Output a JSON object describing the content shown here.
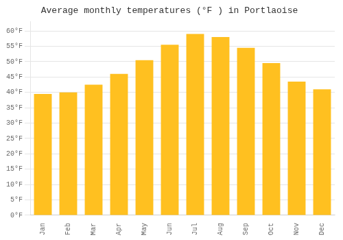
{
  "chart_data": {
    "type": "bar",
    "title": "Average monthly temperatures (°F ) in Portlaoise",
    "categories": [
      "Jan",
      "Feb",
      "Mar",
      "Apr",
      "May",
      "Jun",
      "Jul",
      "Aug",
      "Sep",
      "Oct",
      "Nov",
      "Dec"
    ],
    "values": [
      39.5,
      40.0,
      42.5,
      46.0,
      50.5,
      55.5,
      59.0,
      58.0,
      54.5,
      49.5,
      43.5,
      41.0
    ],
    "color": "#FFC020",
    "ylim": [
      0,
      63
    ],
    "yticks": [
      {
        "value": 0,
        "label": "0°F"
      },
      {
        "value": 5,
        "label": "5°F"
      },
      {
        "value": 10,
        "label": "10°F"
      },
      {
        "value": 15,
        "label": "15°F"
      },
      {
        "value": 20,
        "label": "20°F"
      },
      {
        "value": 25,
        "label": "25°F"
      },
      {
        "value": 30,
        "label": "30°F"
      },
      {
        "value": 35,
        "label": "35°F"
      },
      {
        "value": 40,
        "label": "40°F"
      },
      {
        "value": 45,
        "label": "45°F"
      },
      {
        "value": 50,
        "label": "50°F"
      },
      {
        "value": 55,
        "label": "55°F"
      },
      {
        "value": 60,
        "label": "60°F"
      }
    ],
    "grid": true
  }
}
